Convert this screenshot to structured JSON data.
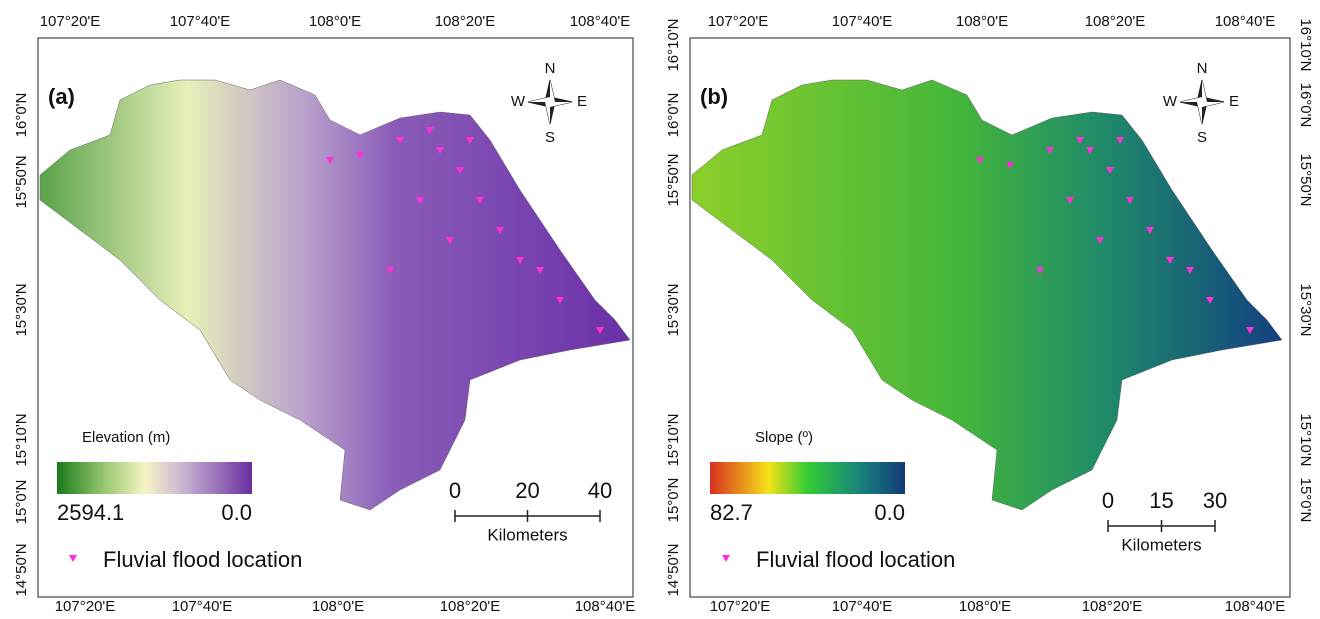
{
  "panels": [
    {
      "label": "(a)",
      "top_ticks": [
        "107°20'E",
        "107°40'E",
        "108°0'E",
        "108°20'E",
        "108°40'E"
      ],
      "bottom_ticks": [
        "107°20'E",
        "107°40'E",
        "108°0'E",
        "108°20'E",
        "108°40'E"
      ],
      "left_ticks": [
        "16°0'N",
        "15°50'N",
        "15°30'N",
        "15°10'N",
        "15°0'N",
        "14°50'N"
      ],
      "compass": {
        "n": "N",
        "e": "E",
        "s": "S",
        "w": "W"
      },
      "legend_title": "Elevation (m)",
      "legend_min": "2594.1",
      "legend_max": "0.0",
      "scale": [
        "0",
        "20",
        "40"
      ],
      "scale_unit": "Kilometers",
      "flood": "Fluvial flood location"
    },
    {
      "label": "(b)",
      "top_ticks": [
        "107°20'E",
        "107°40'E",
        "108°0'E",
        "108°20'E",
        "108°40'E"
      ],
      "bottom_ticks": [
        "107°20'E",
        "107°40'E",
        "108°0'E",
        "108°20'E",
        "108°40'E"
      ],
      "left_ticks": [
        "16°10'N",
        "16°0'N",
        "15°50'N",
        "15°30'N",
        "15°10'N",
        "15°0'N",
        "14°50'N"
      ],
      "right_ticks": [
        "16°10'N",
        "16°0'N",
        "15°50'N",
        "15°30'N",
        "15°10'N",
        "15°0'N"
      ],
      "compass": {
        "n": "N",
        "e": "E",
        "s": "S",
        "w": "W"
      },
      "legend_title": "Slope (º)",
      "legend_min": "82.7",
      "legend_max": "0.0",
      "scale": [
        "0",
        "15",
        "30"
      ],
      "scale_unit": "Kilometers",
      "flood": "Fluvial flood location"
    }
  ]
}
